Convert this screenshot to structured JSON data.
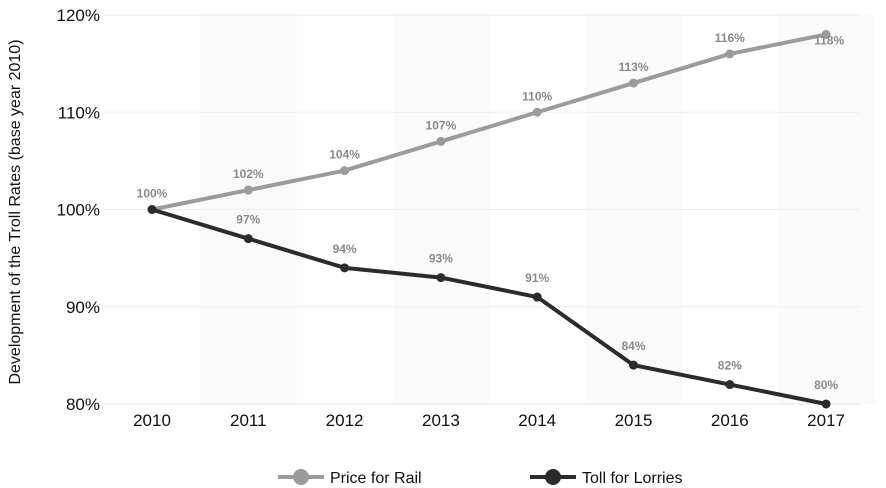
{
  "chart_data": {
    "type": "line",
    "title": "",
    "xlabel": "",
    "ylabel": "Development of the Troll Rates (base year 2010)",
    "x": [
      "2010",
      "2011",
      "2012",
      "2013",
      "2014",
      "2015",
      "2016",
      "2017"
    ],
    "ylim": [
      80,
      120
    ],
    "yticks": [
      "80%",
      "90%",
      "100%",
      "110%",
      "120%"
    ],
    "grid": true,
    "legend_position": "bottom",
    "series": [
      {
        "name": "Price for Rail",
        "color": "#9b9b9b",
        "values": [
          100,
          102,
          104,
          107,
          110,
          113,
          116,
          118
        ],
        "labels": [
          "100%",
          "102%",
          "104%",
          "107%",
          "110%",
          "113%",
          "116%",
          "118%"
        ]
      },
      {
        "name": "Toll for Lorries",
        "color": "#2b2b2b",
        "values": [
          100,
          97,
          94,
          93,
          91,
          84,
          82,
          80
        ],
        "labels": [
          "",
          "97%",
          "94%",
          "93%",
          "91%",
          "84%",
          "82%",
          "80%"
        ]
      }
    ]
  }
}
